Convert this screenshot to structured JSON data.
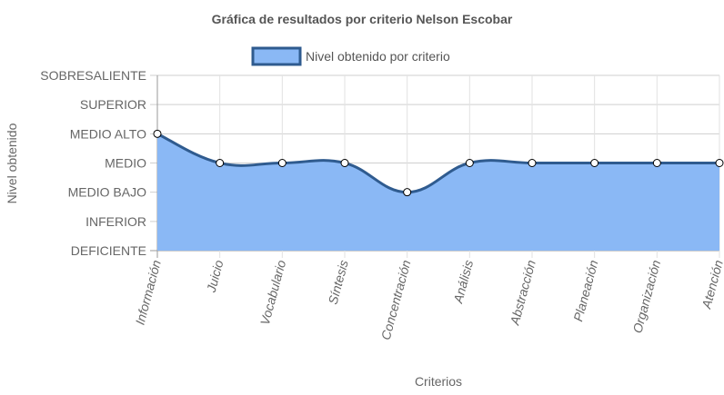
{
  "chart_data": {
    "type": "area",
    "title": "Gráfica de resultados por criterio Nelson Escobar",
    "xlabel": "Criterios",
    "ylabel": "Nivel obtenido",
    "y_levels": [
      "DEFICIENTE",
      "INFERIOR",
      "MEDIO BAJO",
      "MEDIO",
      "MEDIO ALTO",
      "SUPERIOR",
      "SOBRESALIENTE"
    ],
    "categories": [
      "Información",
      "Juicio",
      "Vocabulario",
      "Síntesis",
      "Concentración",
      "Análisis",
      "Abstracción",
      "Planeación",
      "Organización",
      "Atención"
    ],
    "series": [
      {
        "name": "Nivel obtenido por criterio",
        "values": [
          "MEDIO ALTO",
          "MEDIO",
          "MEDIO",
          "MEDIO",
          "MEDIO BAJO",
          "MEDIO",
          "MEDIO",
          "MEDIO",
          "MEDIO",
          "MEDIO"
        ]
      }
    ],
    "legend_position": "top",
    "grid": true,
    "colors": {
      "fill": "#8ab8f5",
      "line": "#2f5b8f",
      "legend_fill": "#8ab8f5",
      "legend_border": "#2f5b8f"
    }
  }
}
